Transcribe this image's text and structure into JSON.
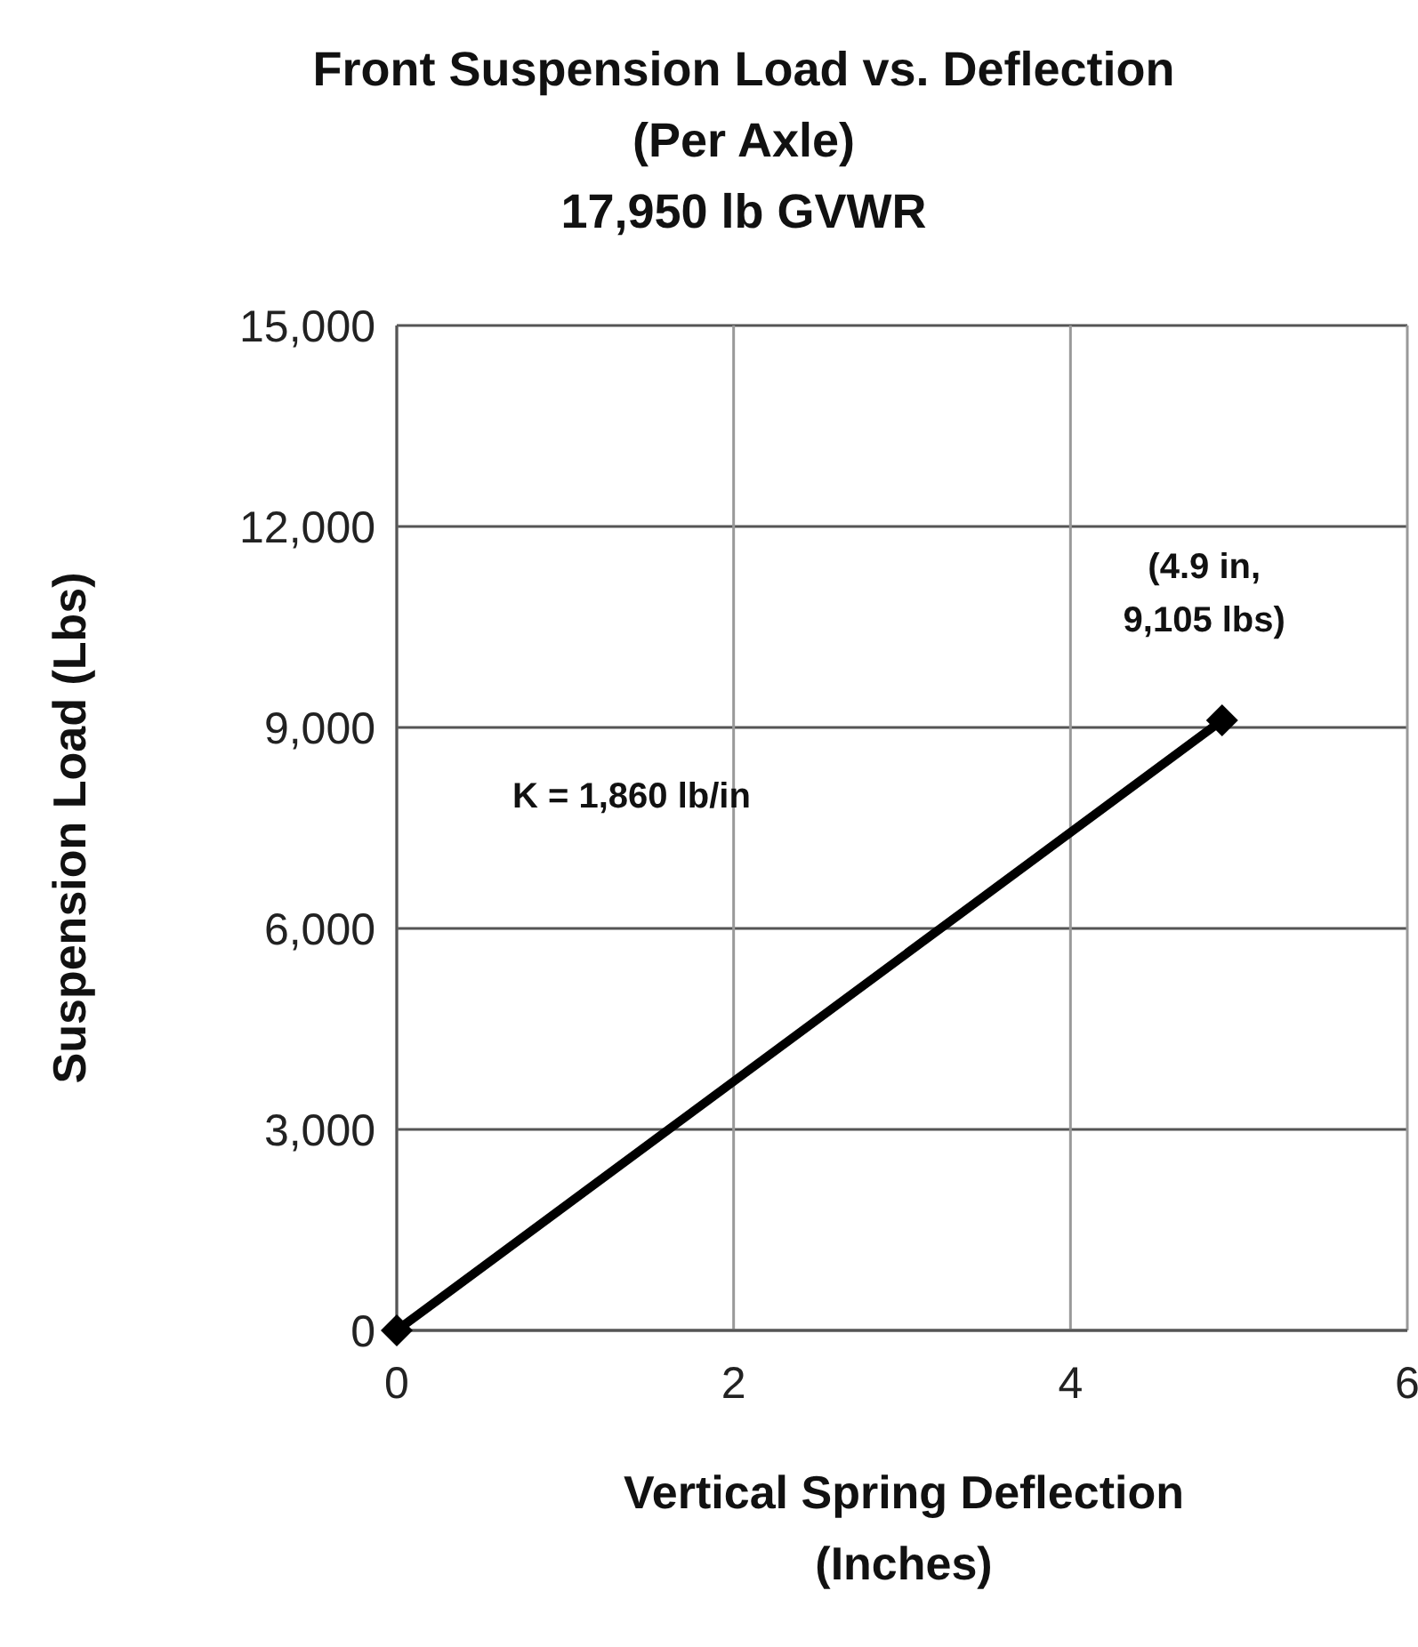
{
  "chart_data": {
    "type": "line",
    "title": "Front Suspension Load vs. Deflection\n(Per Axle)\n17,950 lb GVWR",
    "xlabel": "Vertical Spring Deflection\n(Inches)",
    "ylabel": "Suspension Load  (Lbs)",
    "x": [
      0,
      4.9
    ],
    "series": [
      {
        "color": "#000000",
        "values": [
          0,
          9105
        ]
      }
    ],
    "xlim": [
      0,
      6
    ],
    "xticks": [
      0,
      2,
      4,
      6
    ],
    "ylim": [
      0,
      15000
    ],
    "yticks": [
      {
        "value": 0,
        "label": "0"
      },
      {
        "value": 3000,
        "label": "3,000"
      },
      {
        "value": 6000,
        "label": "6,000"
      },
      {
        "value": 9000,
        "label": "9,000"
      },
      {
        "value": 12000,
        "label": "12,000"
      },
      {
        "value": 15000,
        "label": "15,000"
      }
    ],
    "grid": true,
    "marker": "diamond",
    "line_style": "solid",
    "annotations": [
      {
        "text": "(4.9 in,\n9,105 lbs)",
        "x": 4.9,
        "y": 9105
      },
      "K = 1,860 lb/in"
    ]
  }
}
